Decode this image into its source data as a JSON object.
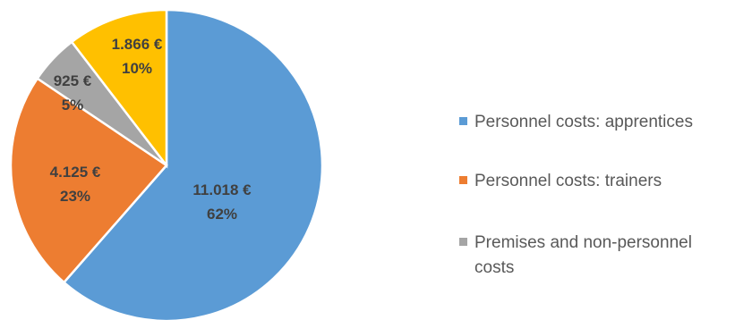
{
  "chart_data": {
    "type": "pie",
    "title": "",
    "legend_position": "right",
    "slices": [
      {
        "name": "Personnel costs: apprentices",
        "value": 11018,
        "value_label": "11.018 €",
        "percent_label": "62%",
        "color": "#5B9BD5",
        "label_color": "#404040"
      },
      {
        "name": "Personnel costs: trainers",
        "value": 4125,
        "value_label": "4.125 €",
        "percent_label": "23%",
        "color": "#ED7D31",
        "label_color": "#404040"
      },
      {
        "name": "Premises and non-personnel costs",
        "value": 925,
        "value_label": "925 €",
        "percent_label": "5%",
        "color": "#A5A5A5",
        "label_color": "#404040"
      },
      {
        "name": "",
        "value": 1866,
        "value_label": "1.866 €",
        "percent_label": "10%",
        "color": "#FFC000",
        "label_color": "#404040"
      }
    ],
    "legend": [
      {
        "lines": [
          "Personnel costs: apprentices"
        ],
        "color": "#5B9BD5"
      },
      {
        "lines": [
          "Personnel costs: trainers"
        ],
        "color": "#ED7D31"
      },
      {
        "lines": [
          "Premises and non-personnel",
          "costs"
        ],
        "color": "#A5A5A5"
      }
    ]
  }
}
